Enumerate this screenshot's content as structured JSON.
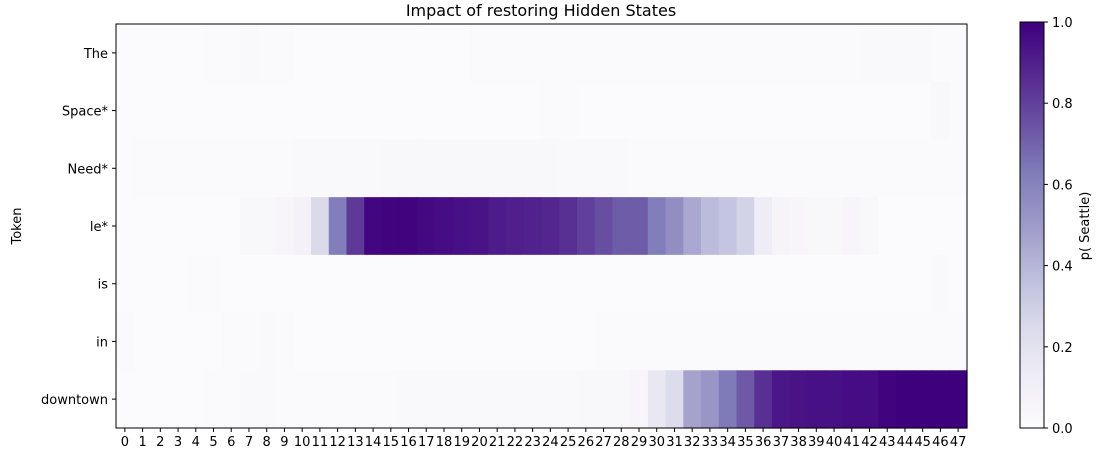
{
  "chart_data": {
    "type": "heatmap",
    "title": "Impact of restoring Hidden States",
    "xlabel": "",
    "ylabel": "Token",
    "colorbar_label": "p( Seattle)",
    "colorbar_range": [
      0.0,
      1.0
    ],
    "colorbar_ticks": [
      "0.0",
      "0.2",
      "0.4",
      "0.6",
      "0.8",
      "1.0"
    ],
    "colormap": "Purples",
    "tokens": [
      "The",
      " Space*",
      " Need*",
      "le*",
      " is",
      " in",
      " downtown"
    ],
    "layers": [
      "0",
      "1",
      "2",
      "3",
      "4",
      "5",
      "6",
      "7",
      "8",
      "9",
      "10",
      "11",
      "12",
      "13",
      "14",
      "15",
      "16",
      "17",
      "18",
      "19",
      "20",
      "21",
      "22",
      "23",
      "24",
      "25",
      "26",
      "27",
      "28",
      "29",
      "30",
      "31",
      "32",
      "33",
      "34",
      "35",
      "36",
      "37",
      "38",
      "39",
      "40",
      "41",
      "42",
      "43",
      "44",
      "45",
      "46",
      "47"
    ],
    "values": [
      [
        0.01,
        0.01,
        0.01,
        0.01,
        0.01,
        0.02,
        0.02,
        0.03,
        0.02,
        0.02,
        0.01,
        0.01,
        0.01,
        0.01,
        0.01,
        0.01,
        0.01,
        0.01,
        0.01,
        0.01,
        0.02,
        0.02,
        0.02,
        0.02,
        0.02,
        0.02,
        0.02,
        0.02,
        0.02,
        0.02,
        0.02,
        0.02,
        0.02,
        0.02,
        0.02,
        0.02,
        0.02,
        0.02,
        0.02,
        0.02,
        0.02,
        0.02,
        0.03,
        0.03,
        0.03,
        0.03,
        0.02,
        0.02
      ],
      [
        0.01,
        0.01,
        0.01,
        0.01,
        0.01,
        0.01,
        0.01,
        0.01,
        0.01,
        0.01,
        0.01,
        0.01,
        0.01,
        0.01,
        0.01,
        0.01,
        0.01,
        0.01,
        0.01,
        0.01,
        0.01,
        0.01,
        0.01,
        0.01,
        0.02,
        0.02,
        0.01,
        0.01,
        0.01,
        0.01,
        0.01,
        0.01,
        0.01,
        0.01,
        0.01,
        0.01,
        0.01,
        0.01,
        0.01,
        0.01,
        0.01,
        0.01,
        0.01,
        0.01,
        0.01,
        0.01,
        0.04,
        0.02
      ],
      [
        0.01,
        0.02,
        0.02,
        0.02,
        0.02,
        0.02,
        0.02,
        0.02,
        0.02,
        0.02,
        0.03,
        0.03,
        0.03,
        0.03,
        0.03,
        0.04,
        0.04,
        0.04,
        0.04,
        0.04,
        0.04,
        0.04,
        0.04,
        0.04,
        0.04,
        0.03,
        0.03,
        0.03,
        0.03,
        0.02,
        0.02,
        0.02,
        0.02,
        0.02,
        0.02,
        0.02,
        0.02,
        0.02,
        0.02,
        0.02,
        0.02,
        0.02,
        0.02,
        0.02,
        0.02,
        0.02,
        0.02,
        0.02
      ],
      [
        0.01,
        0.01,
        0.01,
        0.01,
        0.01,
        0.01,
        0.01,
        0.04,
        0.04,
        0.05,
        0.08,
        0.25,
        0.62,
        0.82,
        0.98,
        0.99,
        0.99,
        0.97,
        0.96,
        0.95,
        0.94,
        0.91,
        0.9,
        0.89,
        0.88,
        0.85,
        0.8,
        0.76,
        0.72,
        0.72,
        0.62,
        0.55,
        0.45,
        0.38,
        0.34,
        0.28,
        0.13,
        0.06,
        0.05,
        0.04,
        0.04,
        0.05,
        0.04,
        0.01,
        0.01,
        0.01,
        0.01,
        0.01
      ],
      [
        0.01,
        0.01,
        0.01,
        0.01,
        0.02,
        0.02,
        0.01,
        0.01,
        0.01,
        0.01,
        0.01,
        0.01,
        0.01,
        0.01,
        0.01,
        0.01,
        0.01,
        0.01,
        0.01,
        0.01,
        0.01,
        0.01,
        0.01,
        0.01,
        0.01,
        0.01,
        0.01,
        0.01,
        0.01,
        0.01,
        0.01,
        0.01,
        0.01,
        0.01,
        0.01,
        0.01,
        0.01,
        0.01,
        0.01,
        0.01,
        0.01,
        0.01,
        0.01,
        0.01,
        0.01,
        0.01,
        0.03,
        0.01
      ],
      [
        0.02,
        0.01,
        0.01,
        0.01,
        0.01,
        0.01,
        0.02,
        0.02,
        0.03,
        0.02,
        0.01,
        0.01,
        0.01,
        0.01,
        0.01,
        0.01,
        0.01,
        0.01,
        0.01,
        0.01,
        0.01,
        0.01,
        0.01,
        0.01,
        0.01,
        0.01,
        0.01,
        0.02,
        0.02,
        0.02,
        0.02,
        0.02,
        0.02,
        0.02,
        0.02,
        0.02,
        0.02,
        0.02,
        0.02,
        0.02,
        0.02,
        0.02,
        0.02,
        0.02,
        0.02,
        0.02,
        0.02,
        0.02
      ],
      [
        0.01,
        0.01,
        0.01,
        0.01,
        0.01,
        0.02,
        0.02,
        0.03,
        0.03,
        0.02,
        0.02,
        0.02,
        0.02,
        0.02,
        0.02,
        0.02,
        0.03,
        0.03,
        0.03,
        0.03,
        0.03,
        0.03,
        0.03,
        0.03,
        0.03,
        0.03,
        0.04,
        0.04,
        0.04,
        0.05,
        0.16,
        0.24,
        0.47,
        0.52,
        0.63,
        0.73,
        0.85,
        0.93,
        0.94,
        0.95,
        0.95,
        0.96,
        0.96,
        0.99,
        1.0,
        1.0,
        1.0,
        1.0
      ]
    ]
  }
}
